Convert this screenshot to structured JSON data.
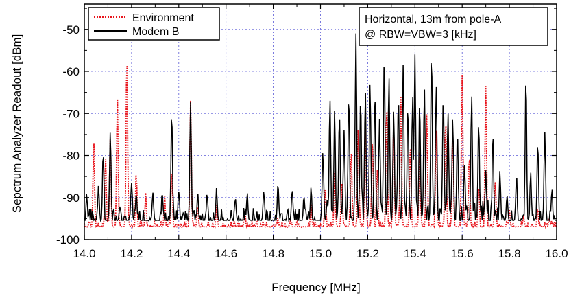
{
  "chart_data": {
    "type": "line",
    "xlabel": "Frequency [MHz]",
    "ylabel": "Sepctrum Analyzer Readout [dBm]",
    "xlim": [
      14.0,
      16.0
    ],
    "ylim": [
      -100,
      -44
    ],
    "x_ticks": [
      "14.0",
      "14.2",
      "14.4",
      "14.6",
      "14.8",
      "15.0",
      "15.2",
      "15.4",
      "15.6",
      "15.8",
      "16.0"
    ],
    "y_ticks": [
      "-100",
      "-90",
      "-80",
      "-70",
      "-60",
      "-50"
    ],
    "grid": true,
    "legend_position": "top-left",
    "annotation": [
      "Horizontal, 13m from pole-A",
      "@ RBW=VBW=3 [kHz]"
    ],
    "series": [
      {
        "name": "Environment",
        "color": "#e8141c",
        "style": "dotted",
        "floor": -97.5,
        "noise": 1.2,
        "peaks": [
          [
            14.04,
            -77
          ],
          [
            14.09,
            -81
          ],
          [
            14.11,
            -76
          ],
          [
            14.14,
            -66
          ],
          [
            14.18,
            -55
          ],
          [
            14.22,
            -84
          ],
          [
            14.26,
            -89
          ],
          [
            14.34,
            -90
          ],
          [
            14.37,
            -83
          ],
          [
            14.45,
            -67
          ],
          [
            14.48,
            -92
          ],
          [
            14.56,
            -92
          ],
          [
            14.68,
            -93
          ],
          [
            14.82,
            -95
          ],
          [
            14.96,
            -92
          ],
          [
            15.02,
            -88
          ],
          [
            15.06,
            -84
          ],
          [
            15.09,
            -87
          ],
          [
            15.13,
            -78
          ],
          [
            15.16,
            -73
          ],
          [
            15.19,
            -72
          ],
          [
            15.22,
            -76
          ],
          [
            15.24,
            -83
          ],
          [
            15.28,
            -68
          ],
          [
            15.31,
            -72
          ],
          [
            15.34,
            -66
          ],
          [
            15.38,
            -77
          ],
          [
            15.42,
            -78
          ],
          [
            15.45,
            -70
          ],
          [
            15.49,
            -74
          ],
          [
            15.53,
            -71
          ],
          [
            15.56,
            -73
          ],
          [
            15.6,
            -61
          ],
          [
            15.63,
            -80
          ],
          [
            15.67,
            -87
          ],
          [
            15.7,
            -63
          ],
          [
            15.74,
            -86
          ],
          [
            15.8,
            -93
          ],
          [
            15.86,
            -94
          ],
          [
            15.92,
            -93
          ],
          [
            15.97,
            -95
          ]
        ]
      },
      {
        "name": "Modem B",
        "color": "#000000",
        "style": "solid",
        "floor": -96,
        "noise": 2.2,
        "peaks": [
          [
            14.01,
            -89
          ],
          [
            14.06,
            -87
          ],
          [
            14.08,
            -79
          ],
          [
            14.11,
            -74
          ],
          [
            14.15,
            -92
          ],
          [
            14.2,
            -86
          ],
          [
            14.22,
            -89
          ],
          [
            14.29,
            -89
          ],
          [
            14.33,
            -89
          ],
          [
            14.37,
            -69
          ],
          [
            14.4,
            -88
          ],
          [
            14.45,
            -67
          ],
          [
            14.48,
            -89
          ],
          [
            14.52,
            -89
          ],
          [
            14.56,
            -88
          ],
          [
            14.64,
            -90
          ],
          [
            14.69,
            -89
          ],
          [
            14.76,
            -89
          ],
          [
            14.82,
            -86
          ],
          [
            14.88,
            -88
          ],
          [
            14.93,
            -89
          ],
          [
            14.96,
            -88
          ],
          [
            15.01,
            -79
          ],
          [
            15.04,
            -66
          ],
          [
            15.06,
            -69
          ],
          [
            15.08,
            -70
          ],
          [
            15.1,
            -74
          ],
          [
            15.12,
            -65
          ],
          [
            15.15,
            -51
          ],
          [
            15.17,
            -66
          ],
          [
            15.19,
            -64
          ],
          [
            15.21,
            -62
          ],
          [
            15.23,
            -65
          ],
          [
            15.25,
            -71
          ],
          [
            15.27,
            -56
          ],
          [
            15.29,
            -61
          ],
          [
            15.31,
            -69
          ],
          [
            15.33,
            -66
          ],
          [
            15.35,
            -58
          ],
          [
            15.37,
            -68
          ],
          [
            15.39,
            -66
          ],
          [
            15.4,
            -56
          ],
          [
            15.42,
            -67
          ],
          [
            15.44,
            -64
          ],
          [
            15.47,
            -55
          ],
          [
            15.49,
            -63
          ],
          [
            15.52,
            -66
          ],
          [
            15.54,
            -69
          ],
          [
            15.56,
            -71
          ],
          [
            15.58,
            -74
          ],
          [
            15.61,
            -82
          ],
          [
            15.64,
            -65
          ],
          [
            15.67,
            -72
          ],
          [
            15.7,
            -84
          ],
          [
            15.73,
            -75
          ],
          [
            15.76,
            -84
          ],
          [
            15.79,
            -90
          ],
          [
            15.83,
            -85
          ],
          [
            15.87,
            -61
          ],
          [
            15.89,
            -84
          ],
          [
            15.92,
            -77
          ],
          [
            15.95,
            -74
          ],
          [
            15.98,
            -88
          ]
        ]
      }
    ]
  }
}
